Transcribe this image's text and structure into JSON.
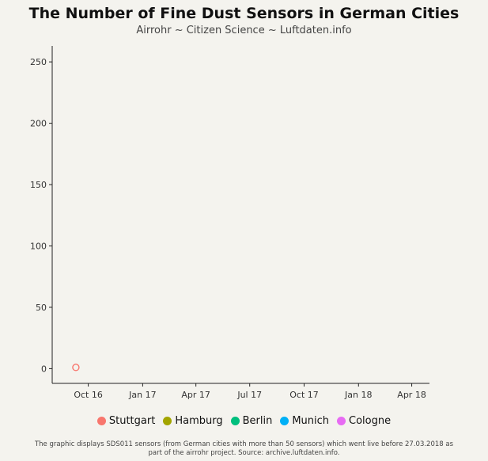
{
  "title": "The Number of Fine Dust Sensors in German Cities",
  "subtitle": "Airrohr ~ Citizen Science ~ Luftdaten.info",
  "caption": "The graphic displays SDS011 sensors (from German cities with more than 50 sensors) which went live before 27.03.2018 as part of the airrohr project. Source: archive.luftdaten.info.",
  "legend": {
    "placement": "bottom",
    "items": [
      {
        "label": "Stuttgart",
        "color": "#f8766d"
      },
      {
        "label": "Hamburg",
        "color": "#a3a500"
      },
      {
        "label": "Berlin",
        "color": "#00bf7d"
      },
      {
        "label": "Munich",
        "color": "#00b0f6"
      },
      {
        "label": "Cologne",
        "color": "#e76bf3"
      }
    ]
  },
  "chart_data": {
    "type": "scatter",
    "title": "The Number of Fine Dust Sensors in German Cities",
    "subtitle": "Airrohr ~ Citizen Science ~ Luftdaten.info",
    "xlabel": "",
    "ylabel": "",
    "x_tick_labels": [
      "Oct 16",
      "Jan 17",
      "Apr 17",
      "Jul 17",
      "Oct 17",
      "Jan 18",
      "Apr 18"
    ],
    "x_tick_dates": [
      "2016-10-01",
      "2017-01-01",
      "2017-04-01",
      "2017-07-01",
      "2017-10-01",
      "2018-01-01",
      "2018-04-01"
    ],
    "xlim": [
      "2016-08-01",
      "2018-05-01"
    ],
    "y_ticks": [
      0,
      50,
      100,
      150,
      200,
      250
    ],
    "ylim": [
      -12,
      263
    ],
    "grid": false,
    "series": [
      {
        "name": "Stuttgart",
        "color": "#f8766d",
        "points": [
          {
            "x": "2016-09-10",
            "y": 1
          }
        ]
      },
      {
        "name": "Hamburg",
        "color": "#a3a500",
        "points": []
      },
      {
        "name": "Berlin",
        "color": "#00bf7d",
        "points": []
      },
      {
        "name": "Munich",
        "color": "#00b0f6",
        "points": []
      },
      {
        "name": "Cologne",
        "color": "#e76bf3",
        "points": []
      }
    ]
  }
}
